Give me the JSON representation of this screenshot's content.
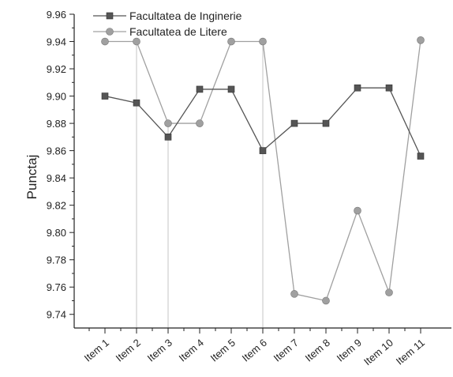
{
  "chart_data": {
    "type": "line",
    "title": "",
    "xlabel": "",
    "ylabel": "Punctaj",
    "categories": [
      "Item 1",
      "Item 2",
      "Item 3",
      "Item 4",
      "Item 5",
      "Item 6",
      "Item 7",
      "Item 8",
      "Item 9",
      "Item 10",
      "Item 11"
    ],
    "ylim": [
      9.73,
      9.96
    ],
    "yticks": [
      "9.74",
      "9.76",
      "9.78",
      "9.80",
      "9.82",
      "9.84",
      "9.86",
      "9.88",
      "9.90",
      "9.92",
      "9.94",
      "9.96"
    ],
    "grid": false,
    "legend_position": "top-left",
    "series": [
      {
        "name": "Facultatea de Inginerie",
        "marker": "square",
        "color": "#555555",
        "values": [
          9.9,
          9.895,
          9.87,
          9.905,
          9.905,
          9.86,
          9.88,
          9.88,
          9.906,
          9.906,
          9.856
        ]
      },
      {
        "name": "Facultatea de Litere",
        "marker": "circle",
        "color": "#a0a0a0",
        "values": [
          9.94,
          9.94,
          9.88,
          9.88,
          9.94,
          9.94,
          9.755,
          9.75,
          9.816,
          9.756,
          9.941
        ]
      }
    ]
  }
}
